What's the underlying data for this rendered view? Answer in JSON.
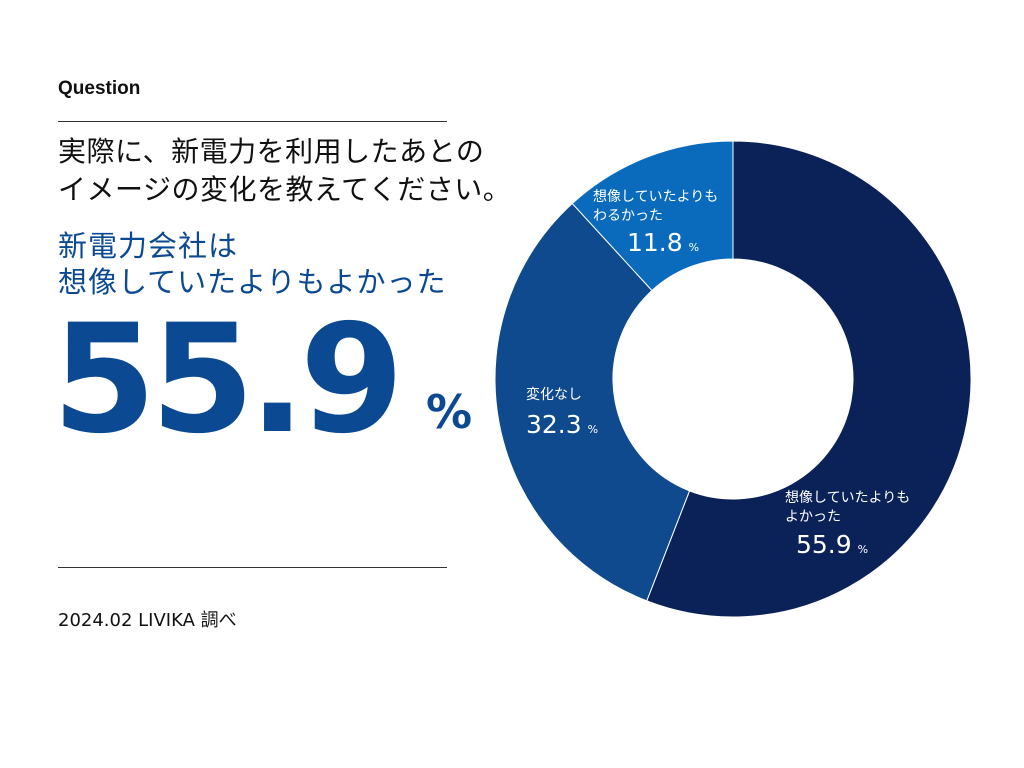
{
  "header": {
    "question_label": "Question",
    "question_line1": "実際に、新電力を利用したあとの",
    "question_line2": "イメージの変化を教えてください。"
  },
  "highlight": {
    "line1": "新電力会社は",
    "line2": "想像していたよりもよかった",
    "value": "55.9",
    "unit": "%"
  },
  "source": "2024.02 LIVIKA 調べ",
  "colors": {
    "better": "#0b2259",
    "no_change": "#0e4a8d",
    "worse": "#0a6bbd",
    "accent": "#0b4a92"
  },
  "chart_data": {
    "type": "pie",
    "donut": true,
    "unit": "%",
    "slices": [
      {
        "label_line1": "想像していたよりも",
        "label_line2": "よかった",
        "value": 55.9,
        "value_text": "55.9"
      },
      {
        "label_line1": "変化なし",
        "label_line2": "",
        "value": 32.3,
        "value_text": "32.3"
      },
      {
        "label_line1": "想像していたよりも",
        "label_line2": "わるかった",
        "value": 11.8,
        "value_text": "11.8"
      }
    ]
  }
}
